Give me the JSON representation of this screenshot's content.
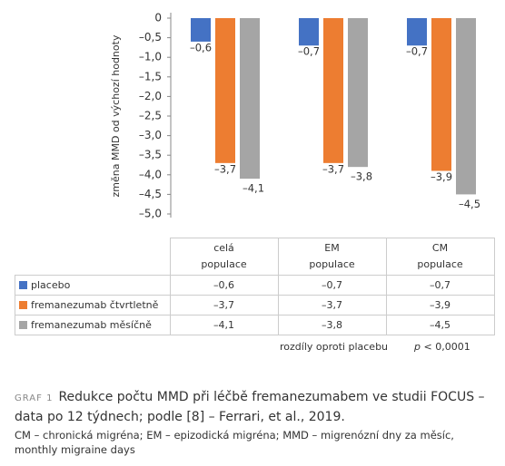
{
  "chart_data": {
    "type": "bar",
    "ylabel": "změna MMD od výchozí hodnoty",
    "categories": [
      "celá populace",
      "EM populace",
      "CM populace"
    ],
    "series": [
      {
        "name": "placebo",
        "color": "#4472c4",
        "values": [
          -0.6,
          -0.7,
          -0.7
        ],
        "value_labels": [
          "–0,6",
          "–0,7",
          "–0,7"
        ]
      },
      {
        "name": "fremanezumab čtvrtletně",
        "color": "#ed7d31",
        "values": [
          -3.7,
          -3.7,
          -3.9
        ],
        "value_labels": [
          "–3,7",
          "–3,7",
          "–3,9"
        ]
      },
      {
        "name": "fremanezumab měsíčně",
        "color": "#a5a5a5",
        "values": [
          -4.1,
          -3.8,
          -4.5
        ],
        "value_labels": [
          "–4,1",
          "–3,8",
          "–4,5"
        ]
      }
    ],
    "ylim": [
      0,
      -5.0
    ],
    "yticks": [
      0,
      {
        "value": -0.5,
        "label": "–0,5"
      },
      {
        "value": -1.0,
        "label": "–1,0"
      },
      {
        "value": -1.5,
        "label": "–1,5"
      },
      {
        "value": -2.0,
        "label": "–2,0"
      },
      {
        "value": -2.5,
        "label": "–2,5"
      },
      {
        "value": -3.0,
        "label": "–3,0"
      },
      {
        "value": -3.5,
        "label": "–3,5"
      },
      {
        "value": -4.0,
        "label": "–4,0"
      },
      {
        "value": -4.5,
        "label": "–4,5"
      },
      {
        "value": -5.0,
        "label": "–5,0"
      }
    ],
    "note": "rozdíly oproti placebu",
    "p_symbol": "p",
    "p_value": "< 0,0001"
  },
  "caption": {
    "label": "GRAF 1",
    "title": "Redukce počtu MMD při léčbě fremanezumabem ve studii FOCUS – data po 12 týdnech; podle [8] – Ferrari, et al., 2019.",
    "footnote": "CM – chronická migréna; EM – epizodická migréna; MMD – migrenózní dny za měsíc, monthly migraine days"
  }
}
